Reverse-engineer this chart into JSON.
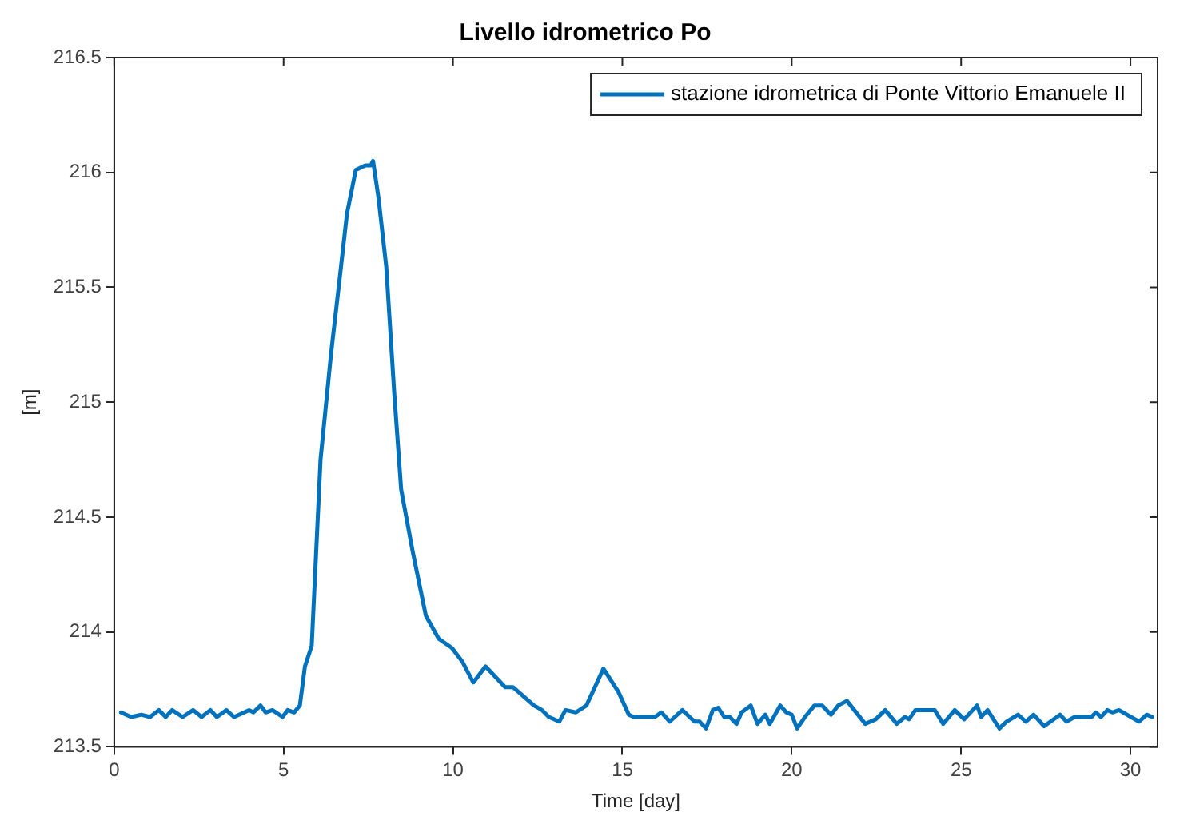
{
  "chart_data": {
    "type": "line",
    "title": "Livello idrometrico Po",
    "xlabel": "Time [day]",
    "ylabel": "[m]",
    "xlim": [
      0,
      30.8
    ],
    "xticks": [
      0,
      5,
      10,
      15,
      20,
      25,
      30
    ],
    "ylim": [
      213.5,
      216.5
    ],
    "yticks": [
      213.5,
      214,
      214.5,
      215,
      215.5,
      216,
      216.5
    ],
    "grid": false,
    "legend": "top right",
    "marker": "none",
    "line_style": "solid",
    "x": [
      0.2,
      0.5,
      0.8,
      1.06,
      1.32,
      1.52,
      1.71,
      2.02,
      2.33,
      2.58,
      2.84,
      3.03,
      3.31,
      3.54,
      3.98,
      4.11,
      4.32,
      4.47,
      4.67,
      4.97,
      5.12,
      5.31,
      5.48,
      5.63,
      5.83,
      6.09,
      6.4,
      6.64,
      6.87,
      7.13,
      7.41,
      7.57,
      7.64,
      7.8,
      8.03,
      8.27,
      8.47,
      8.81,
      9.2,
      9.58,
      9.97,
      10.28,
      10.6,
      10.96,
      11.54,
      11.77,
      12.39,
      12.63,
      12.83,
      13.14,
      13.32,
      13.63,
      13.94,
      14.44,
      14.88,
      15.19,
      15.34,
      15.96,
      16.15,
      16.4,
      16.77,
      17.13,
      17.28,
      17.47,
      17.67,
      17.83,
      18.01,
      18.17,
      18.37,
      18.52,
      18.79,
      18.99,
      19.22,
      19.35,
      19.66,
      19.84,
      20.0,
      20.16,
      20.39,
      20.67,
      20.9,
      21.16,
      21.37,
      21.63,
      22.17,
      22.48,
      22.76,
      23.1,
      23.34,
      23.46,
      23.65,
      24.22,
      24.47,
      24.81,
      25.09,
      25.47,
      25.59,
      25.78,
      26.13,
      26.34,
      26.68,
      26.91,
      27.14,
      27.45,
      27.92,
      28.11,
      28.35,
      28.85,
      28.98,
      29.13,
      29.32,
      29.47,
      29.66,
      30.25,
      30.48,
      30.64
    ],
    "series": [
      {
        "name": "stazione idrometrica di Ponte Vittorio Emanuele II",
        "color": "#0072bd",
        "values": [
          213.65,
          213.63,
          213.64,
          213.63,
          213.66,
          213.63,
          213.66,
          213.63,
          213.66,
          213.63,
          213.66,
          213.63,
          213.66,
          213.63,
          213.66,
          213.65,
          213.68,
          213.65,
          213.66,
          213.63,
          213.66,
          213.65,
          213.68,
          213.85,
          213.94,
          214.75,
          215.21,
          215.52,
          215.82,
          216.01,
          216.03,
          216.03,
          216.05,
          215.89,
          215.59,
          215.03,
          214.62,
          214.35,
          214.07,
          213.97,
          213.93,
          213.87,
          213.78,
          213.85,
          213.76,
          213.76,
          213.68,
          213.66,
          213.63,
          213.61,
          213.66,
          213.65,
          213.68,
          213.84,
          213.74,
          213.64,
          213.63,
          213.63,
          213.65,
          213.61,
          213.66,
          213.61,
          213.61,
          213.58,
          213.66,
          213.67,
          213.63,
          213.63,
          213.6,
          213.65,
          213.68,
          213.6,
          213.64,
          213.6,
          213.68,
          213.65,
          213.64,
          213.58,
          213.63,
          213.68,
          213.68,
          213.64,
          213.68,
          213.7,
          213.6,
          213.62,
          213.66,
          213.6,
          213.63,
          213.62,
          213.66,
          213.66,
          213.6,
          213.66,
          213.62,
          213.68,
          213.63,
          213.66,
          213.58,
          213.61,
          213.64,
          213.61,
          213.64,
          213.59,
          213.64,
          213.61,
          213.63,
          213.63,
          213.65,
          213.63,
          213.66,
          213.65,
          213.66,
          213.61,
          213.64,
          213.63
        ]
      }
    ]
  }
}
